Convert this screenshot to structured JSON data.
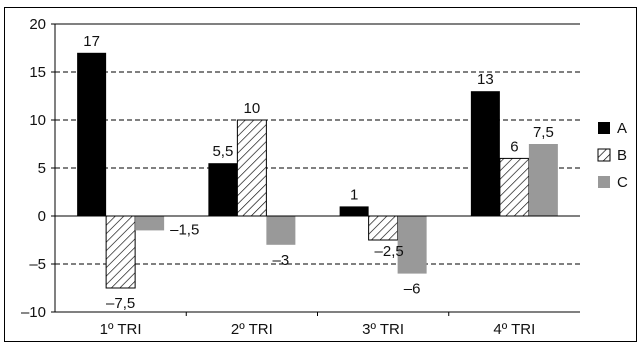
{
  "chart_data": {
    "type": "bar",
    "title": "",
    "xlabel": "",
    "ylabel": "",
    "categories": [
      "1º TRI",
      "2º TRI",
      "3º TRI",
      "4º TRI"
    ],
    "series": [
      {
        "name": "A",
        "values": [
          17,
          5.5,
          1,
          13
        ],
        "labels": [
          "17",
          "5,5",
          "1",
          "13"
        ],
        "color": "#000000",
        "pattern": "solid"
      },
      {
        "name": "B",
        "values": [
          -7.5,
          10,
          -2.5,
          6
        ],
        "labels": [
          "–7,5",
          "10",
          "–2,5",
          "6"
        ],
        "color": "#ffffff",
        "pattern": "hatch"
      },
      {
        "name": "C",
        "values": [
          -1.5,
          -3,
          -6,
          7.5
        ],
        "labels": [
          "–1,5",
          "–3",
          "–6",
          "7,5"
        ],
        "color": "#999999",
        "pattern": "solid"
      }
    ],
    "ylim": [
      -10,
      20
    ],
    "yticks": [
      20,
      15,
      10,
      5,
      0,
      -5,
      -10
    ],
    "ytick_labels": [
      "20",
      "15",
      "10",
      "5",
      "0",
      "–5",
      "–10"
    ],
    "grid": {
      "horizontal": true,
      "style": "dashed"
    },
    "legend": {
      "position": "right"
    }
  }
}
